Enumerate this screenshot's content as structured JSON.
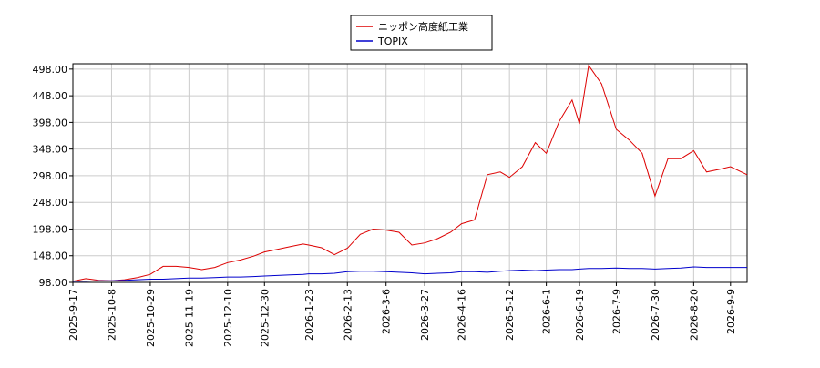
{
  "chart_data": {
    "type": "line",
    "x": [
      "2025-9-17",
      "2025-9-24",
      "2025-10-1",
      "2025-10-8",
      "2025-10-15",
      "2025-10-22",
      "2025-10-29",
      "2025-11-5",
      "2025-11-12",
      "2025-11-19",
      "2025-11-26",
      "2025-12-3",
      "2025-12-10",
      "2025-12-17",
      "2025-12-24",
      "2025-12-30",
      "2026-1-6",
      "2026-1-13",
      "2026-1-20",
      "2026-1-23",
      "2026-1-30",
      "2026-2-6",
      "2026-2-13",
      "2026-2-20",
      "2026-2-27",
      "2026-3-6",
      "2026-3-13",
      "2026-3-20",
      "2026-3-27",
      "2026-4-3",
      "2026-4-10",
      "2026-4-16",
      "2026-4-23",
      "2026-4-30",
      "2026-5-7",
      "2026-5-12",
      "2026-5-19",
      "2026-5-26",
      "2026-6-1",
      "2026-6-8",
      "2026-6-15",
      "2026-6-19",
      "2026-6-24",
      "2026-7-1",
      "2026-7-9",
      "2026-7-16",
      "2026-7-23",
      "2026-7-30",
      "2026-8-6",
      "2026-8-13",
      "2026-8-20",
      "2026-8-27",
      "2026-9-3",
      "2026-9-9",
      "2026-9-18"
    ],
    "series": [
      {
        "name": "ニッポン高度紙工業",
        "color": "#dd0000",
        "values": [
          100,
          105,
          102,
          101,
          103,
          107,
          113,
          128,
          128,
          126,
          122,
          126,
          135,
          140,
          147,
          155,
          160,
          165,
          170,
          168,
          163,
          150,
          162,
          188,
          198,
          196,
          192,
          168,
          172,
          180,
          192,
          208,
          215,
          300,
          305,
          295,
          315,
          360,
          340,
          400,
          440,
          395,
          505,
          470,
          385,
          365,
          340,
          260,
          330,
          330,
          345,
          305,
          310,
          315,
          300
        ]
      },
      {
        "name": "TOPIX",
        "color": "#0000cc",
        "values": [
          100,
          100,
          101,
          101,
          102,
          103,
          104,
          104,
          105,
          106,
          106,
          107,
          108,
          108,
          109,
          110,
          111,
          112,
          113,
          114,
          114,
          115,
          118,
          119,
          119,
          118,
          117,
          116,
          114,
          115,
          116,
          118,
          118,
          117,
          119,
          120,
          121,
          120,
          121,
          122,
          122,
          123,
          124,
          124,
          125,
          124,
          124,
          123,
          124,
          125,
          127,
          126,
          126,
          126,
          126
        ]
      }
    ],
    "xlim": [
      "2025-9-17",
      "2026-9-18"
    ],
    "xticks": [
      "2025-9-17",
      "2025-10-8",
      "2025-10-29",
      "2025-11-19",
      "2025-12-10",
      "2025-12-30",
      "2026-1-23",
      "2026-2-13",
      "2026-3-6",
      "2026-3-27",
      "2026-4-16",
      "2026-5-12",
      "2026-6-1",
      "2026-6-19",
      "2026-7-9",
      "2026-7-30",
      "2026-8-20",
      "2026-9-9"
    ],
    "ylim": [
      98,
      508
    ],
    "yticks": [
      {
        "value": 98,
        "label": "98.00"
      },
      {
        "value": 148,
        "label": "148.00"
      },
      {
        "value": 198,
        "label": "198.00"
      },
      {
        "value": 248,
        "label": "248.00"
      },
      {
        "value": 298,
        "label": "298.00"
      },
      {
        "value": 348,
        "label": "348.00"
      },
      {
        "value": 398,
        "label": "398.00"
      },
      {
        "value": 448,
        "label": "448.00"
      },
      {
        "value": 498,
        "label": "498.00"
      }
    ],
    "grid": true,
    "legend": "top"
  }
}
